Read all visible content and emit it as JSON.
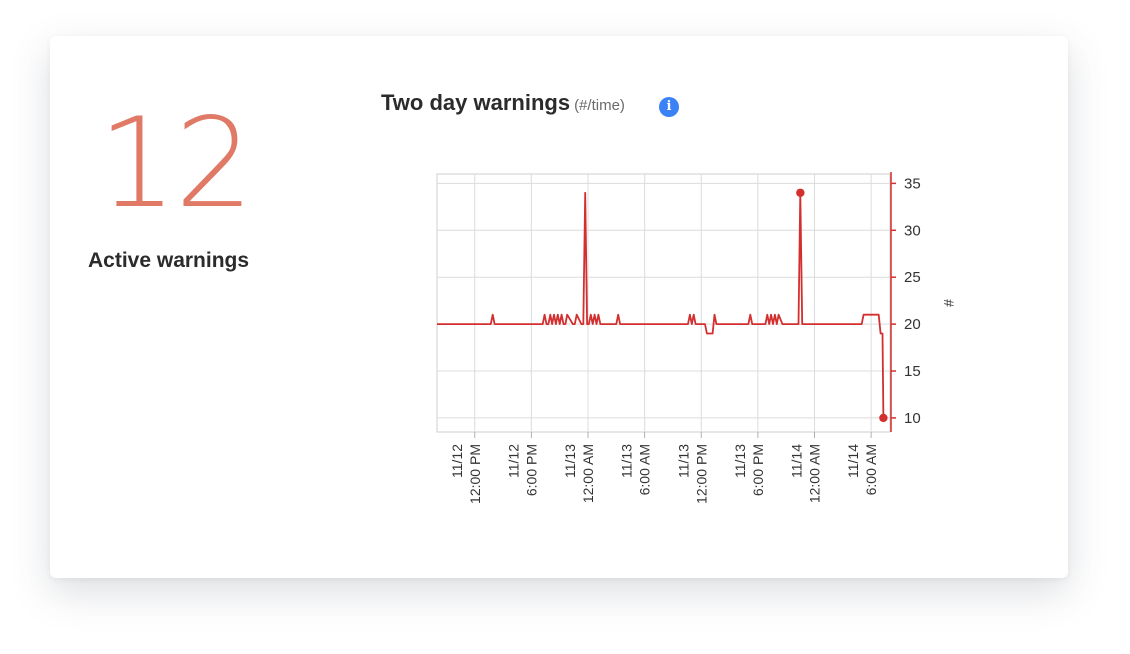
{
  "kpi": {
    "value": "12",
    "label": "Active warnings"
  },
  "chart_data": {
    "type": "line",
    "title": "Two day warnings",
    "title_unit": "(#/time)",
    "ylabel": "#",
    "ylim": [
      8.5,
      36
    ],
    "yticks": [
      10,
      15,
      20,
      25,
      30,
      35
    ],
    "grid": true,
    "axis_position": "right",
    "color": "#d32f2f",
    "xlim_hours": [
      0,
      48
    ],
    "xticks": [
      {
        "hours": 4,
        "date": "11/12",
        "time": "12:00 PM"
      },
      {
        "hours": 10,
        "date": "11/12",
        "time": "6:00 PM"
      },
      {
        "hours": 16,
        "date": "11/13",
        "time": "12:00 AM"
      },
      {
        "hours": 22,
        "date": "11/13",
        "time": "6:00 AM"
      },
      {
        "hours": 28,
        "date": "11/13",
        "time": "12:00 PM"
      },
      {
        "hours": 34,
        "date": "11/13",
        "time": "6:00 PM"
      },
      {
        "hours": 40,
        "date": "11/14",
        "time": "12:00 AM"
      },
      {
        "hours": 46,
        "date": "11/14",
        "time": "6:00 AM"
      }
    ],
    "series": [
      {
        "x": [
          0,
          5.7,
          5.9,
          6.1,
          11.2,
          11.4,
          11.6,
          11.8,
          12.0,
          12.2,
          12.4,
          12.6,
          12.8,
          13.0,
          13.2,
          13.4,
          13.6,
          13.8,
          14.4,
          14.6,
          14.8,
          15.3,
          15.5,
          15.7,
          15.9,
          16.1,
          16.3,
          16.5,
          16.7,
          16.9,
          17.1,
          17.3,
          19.0,
          19.2,
          19.4,
          26.6,
          26.8,
          27.0,
          27.2,
          27.4,
          28.4,
          28.6,
          29.2,
          29.4,
          29.6,
          33.0,
          33.2,
          33.4,
          34.8,
          35.0,
          35.2,
          35.4,
          35.6,
          35.8,
          36.0,
          36.2,
          36.6,
          38.3,
          38.5,
          38.7,
          45.0,
          45.2,
          46.8,
          47.0,
          47.2,
          47.3
        ],
        "y": [
          20,
          20,
          21,
          20,
          20,
          21,
          20,
          20,
          21,
          20,
          21,
          20,
          21,
          20,
          21,
          20,
          20,
          21,
          20,
          20,
          21,
          20,
          20,
          34,
          20,
          20,
          21,
          20,
          21,
          20,
          21,
          20,
          20,
          21,
          20,
          20,
          21,
          20,
          21,
          20,
          20,
          19,
          19,
          21,
          20,
          20,
          21,
          20,
          20,
          21,
          20,
          21,
          20,
          21,
          20,
          21,
          20,
          20,
          34,
          20,
          20,
          21,
          21,
          19,
          19,
          10
        ],
        "markers": [
          [
            38.5,
            34
          ],
          [
            47.3,
            10
          ]
        ]
      }
    ]
  }
}
